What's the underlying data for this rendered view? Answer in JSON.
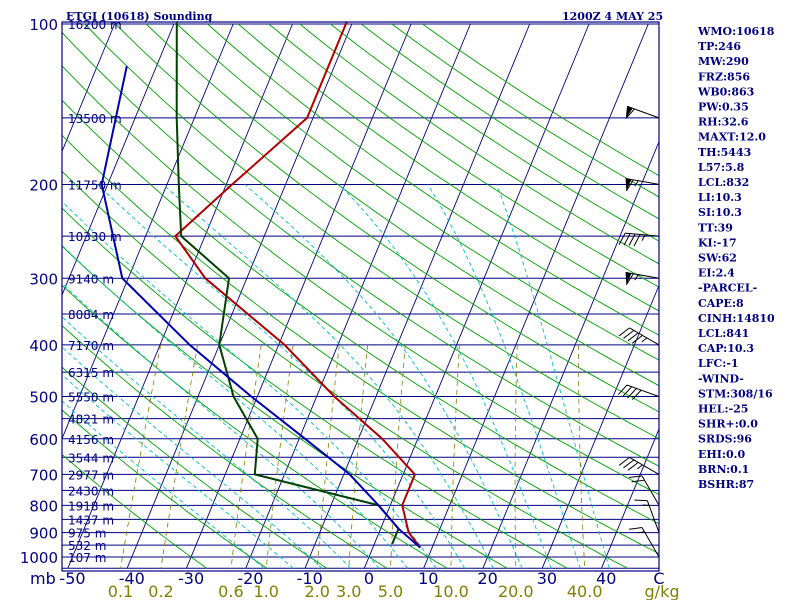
{
  "header": {
    "title": "ETGI (10618) Sounding",
    "datetime": "1200Z  4 MAY 25"
  },
  "indices": [
    "WMO:10618",
    "TP:246",
    "MW:290",
    "FRZ:856",
    "WB0:863",
    "PW:0.35",
    "RH:32.6",
    "MAXT:12.0",
    "TH:5443",
    "L57:5.8",
    "LCL:832",
    "LI:10.3",
    "SI:10.3",
    "TT:39",
    "KI:-17",
    "SW:62",
    "EI:2.4",
    "-PARCEL-",
    "CAPE:8",
    "CINH:14810",
    "LCL:841",
    "CAP:10.3",
    "LFC:-1",
    "-WIND-",
    "STM:308/16",
    "HEL:-25",
    "SHR+:0.0",
    "SRDS:96",
    "EHI:0.0",
    "BRN:0.1",
    "BSHR:87"
  ],
  "colors": {
    "frame": "#000080",
    "isobar": "#000080",
    "isotherm": "#000080",
    "dry_adiabat": "#00a000",
    "moist_adiabat": "#00c0c0",
    "mixing_ratio": "#808000",
    "temperature": "#b00000",
    "dewpoint": "#004000",
    "parcel": "#0000b0",
    "wind_barb": "#000000"
  },
  "chart_data": {
    "type": "line",
    "title": "ETGI (10618) Sounding",
    "xlabel": "C",
    "ylabel": "mb",
    "x_ticks": [
      "-50",
      "-40",
      "-30",
      "-20",
      "-10",
      "0",
      "10",
      "20",
      "30",
      "40"
    ],
    "pressure_ticks": [
      {
        "p": 100,
        "label": "100"
      },
      {
        "p": 200,
        "label": "200"
      },
      {
        "p": 300,
        "label": "300"
      },
      {
        "p": 400,
        "label": "400"
      },
      {
        "p": 500,
        "label": "500"
      },
      {
        "p": 600,
        "label": "600"
      },
      {
        "p": 700,
        "label": "700"
      },
      {
        "p": 800,
        "label": "800"
      },
      {
        "p": 900,
        "label": "900"
      },
      {
        "p": 1000,
        "label": "1000"
      }
    ],
    "height_labels": [
      {
        "p": 100,
        "label": "16200 m"
      },
      {
        "p": 150,
        "label": "13500 m"
      },
      {
        "p": 200,
        "label": "11750 m"
      },
      {
        "p": 250,
        "label": "10330 m"
      },
      {
        "p": 300,
        "label": "9140 m"
      },
      {
        "p": 350,
        "label": "8084 m"
      },
      {
        "p": 400,
        "label": "7170 m"
      },
      {
        "p": 450,
        "label": "6315 m"
      },
      {
        "p": 500,
        "label": "5550 m"
      },
      {
        "p": 550,
        "label": "4821 m"
      },
      {
        "p": 600,
        "label": "4156 m"
      },
      {
        "p": 650,
        "label": "3544 m"
      },
      {
        "p": 700,
        "label": "2977 m"
      },
      {
        "p": 750,
        "label": "2430 m"
      },
      {
        "p": 800,
        "label": "1918 m"
      },
      {
        "p": 850,
        "label": "1437 m"
      },
      {
        "p": 900,
        "label": "975 m"
      },
      {
        "p": 950,
        "label": "532 m"
      },
      {
        "p": 1000,
        "label": "107 m"
      }
    ],
    "mixing_ratio_labels": [
      {
        "w": 0.1,
        "label": "0.1"
      },
      {
        "w": 0.2,
        "label": "0.2"
      },
      {
        "w": 0.6,
        "label": "0.6"
      },
      {
        "w": 1.0,
        "label": "1.0"
      },
      {
        "w": 2.0,
        "label": "2.0"
      },
      {
        "w": 3.0,
        "label": "3.0"
      },
      {
        "w": 5.0,
        "label": "5.0"
      },
      {
        "w": 10.0,
        "label": "10.0"
      },
      {
        "w": 20.0,
        "label": "20.0"
      },
      {
        "w": 40.0,
        "label": "40.0"
      }
    ],
    "mixing_ratio_unit": "g/kg",
    "series": [
      {
        "key": "temperature",
        "points": [
          [
            97,
            -41
          ],
          [
            150,
            -41
          ],
          [
            200,
            -49
          ],
          [
            250,
            -55
          ],
          [
            300,
            -47
          ],
          [
            400,
            -29
          ],
          [
            500,
            -17
          ],
          [
            600,
            -6
          ],
          [
            700,
            2
          ],
          [
            800,
            2
          ],
          [
            900,
            5
          ],
          [
            960,
            8
          ]
        ]
      },
      {
        "key": "dewpoint",
        "points": [
          [
            97,
            -70
          ],
          [
            150,
            -63
          ],
          [
            200,
            -58
          ],
          [
            250,
            -54
          ],
          [
            300,
            -43
          ],
          [
            400,
            -40
          ],
          [
            500,
            -34
          ],
          [
            600,
            -27
          ],
          [
            700,
            -25
          ],
          [
            800,
            -2
          ],
          [
            885,
            3
          ],
          [
            945,
            3
          ]
        ]
      },
      {
        "key": "parcel",
        "points": [
          [
            120,
            -75
          ],
          [
            200,
            -71
          ],
          [
            300,
            -61
          ],
          [
            400,
            -45
          ],
          [
            500,
            -31
          ],
          [
            600,
            -19
          ],
          [
            700,
            -9
          ],
          [
            800,
            -2
          ],
          [
            885,
            3
          ],
          [
            960,
            8
          ]
        ]
      }
    ],
    "winds": [
      {
        "p": 150,
        "dir": 290,
        "spd": 60
      },
      {
        "p": 200,
        "dir": 280,
        "spd": 65
      },
      {
        "p": 250,
        "dir": 275,
        "spd": 45
      },
      {
        "p": 300,
        "dir": 280,
        "spd": 65
      },
      {
        "p": 400,
        "dir": 300,
        "spd": 45
      },
      {
        "p": 500,
        "dir": 290,
        "spd": 40
      },
      {
        "p": 700,
        "dir": 300,
        "spd": 35
      },
      {
        "p": 800,
        "dir": 330,
        "spd": 20
      },
      {
        "p": 900,
        "dir": 340,
        "spd": 15
      },
      {
        "p": 1000,
        "dir": 330,
        "spd": 15
      }
    ],
    "xlim": [
      -50,
      50
    ],
    "ylim": [
      1050,
      100
    ]
  }
}
